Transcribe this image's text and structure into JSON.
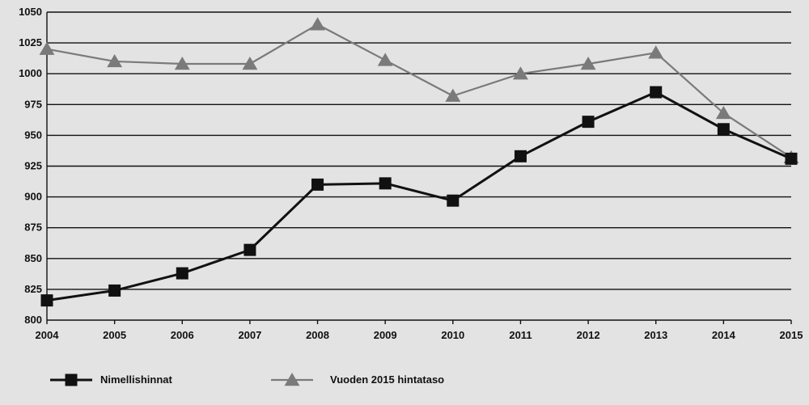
{
  "chart_data": {
    "type": "line",
    "title": "",
    "xlabel": "",
    "ylabel": "",
    "x": [
      "2004",
      "2005",
      "2006",
      "2007",
      "2008",
      "2009",
      "2010",
      "2011",
      "2012",
      "2013",
      "2014",
      "2015"
    ],
    "ylim": [
      800,
      1050
    ],
    "yticks": [
      800,
      825,
      850,
      875,
      900,
      925,
      950,
      975,
      1000,
      1025,
      1050
    ],
    "ytick_labels": [
      "800",
      "825",
      "850",
      "875",
      "900",
      "925",
      "950",
      "975",
      "1000",
      "1025",
      "1050"
    ],
    "grid": "horizontal",
    "legend_position": "bottom",
    "series": [
      {
        "name": "Nimellishinnat",
        "marker": "square",
        "color": "#111111",
        "values": [
          816,
          824,
          838,
          857,
          910,
          911,
          897,
          933,
          961,
          985,
          955,
          931
        ]
      },
      {
        "name": "Vuoden 2015 hintataso",
        "marker": "triangle",
        "color": "#7a7a7a",
        "values": [
          1020,
          1010,
          1008,
          1008,
          1040,
          1011,
          982,
          1000,
          1008,
          1017,
          968,
          932
        ]
      }
    ]
  }
}
